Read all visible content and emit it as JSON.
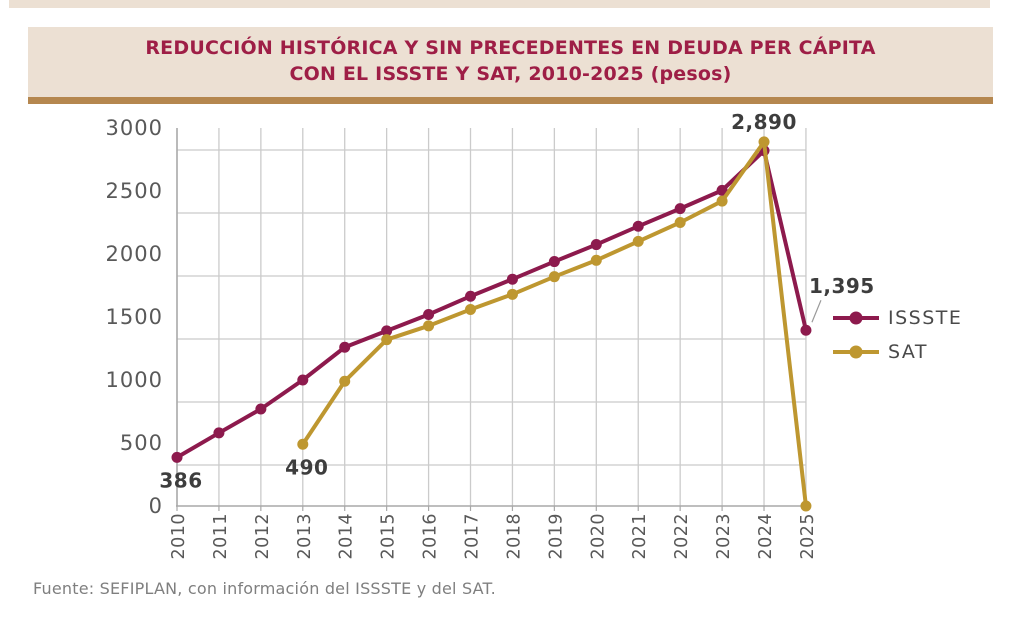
{
  "header": {
    "title_line1": "REDUCCIÓN HISTÓRICA Y SIN PRECEDENTES EN DEUDA PER CÁPITA",
    "title_line2": "CON EL ISSSTE Y SAT, 2010-2025 (pesos)"
  },
  "chart_data": {
    "type": "line",
    "title": "REDUCCIÓN HISTÓRICA Y SIN PRECEDENTES EN DEUDA PER CÁPITA CON EL ISSSTE Y SAT, 2010-2025 (pesos)",
    "x": [
      2010,
      2011,
      2012,
      2013,
      2014,
      2015,
      2016,
      2017,
      2018,
      2019,
      2020,
      2021,
      2022,
      2023,
      2024,
      2025
    ],
    "xlabel": "",
    "ylabel": "",
    "ylim": [
      0,
      3000
    ],
    "yticks": [
      0,
      500,
      1000,
      1500,
      2000,
      2500,
      3000
    ],
    "grid": true,
    "legend_position": "right",
    "series": [
      {
        "name": "ISSSTE",
        "color": "#8D1A4D",
        "values": [
          386,
          580,
          770,
          1000,
          1260,
          1390,
          1520,
          1665,
          1800,
          1940,
          2075,
          2220,
          2360,
          2505,
          2820,
          1395
        ]
      },
      {
        "name": "SAT",
        "color": "#BE9730",
        "values": [
          null,
          null,
          null,
          490,
          990,
          1320,
          1430,
          1560,
          1680,
          1820,
          1950,
          2100,
          2250,
          2420,
          2890,
          0
        ]
      }
    ],
    "annotations": [
      {
        "text": "386",
        "series": "ISSSTE",
        "year": 2010,
        "placement": "below-left",
        "leader": false
      },
      {
        "text": "490",
        "series": "SAT",
        "year": 2013,
        "placement": "below-left",
        "leader": false
      },
      {
        "text": "2,890",
        "series": "SAT",
        "year": 2024,
        "placement": "above",
        "leader": false
      },
      {
        "text": "1,395",
        "series": "ISSSTE",
        "year": 2025,
        "placement": "above-right",
        "leader": true
      }
    ]
  },
  "footer": {
    "source": "Fuente: SEFIPLAN, con información del ISSSTE y del SAT."
  },
  "colors": {
    "title": "#9E1E46",
    "band_bg": "#ECE0D3",
    "rule": "#B5874F",
    "grid": "#CBCBCB",
    "axis": "#A8A8A8",
    "tick_label": "#595959",
    "annotation": "#3D3D3D",
    "leader": "#9A9A9A",
    "legend_text": "#4A4A4A",
    "source": "#7F7F7F"
  }
}
